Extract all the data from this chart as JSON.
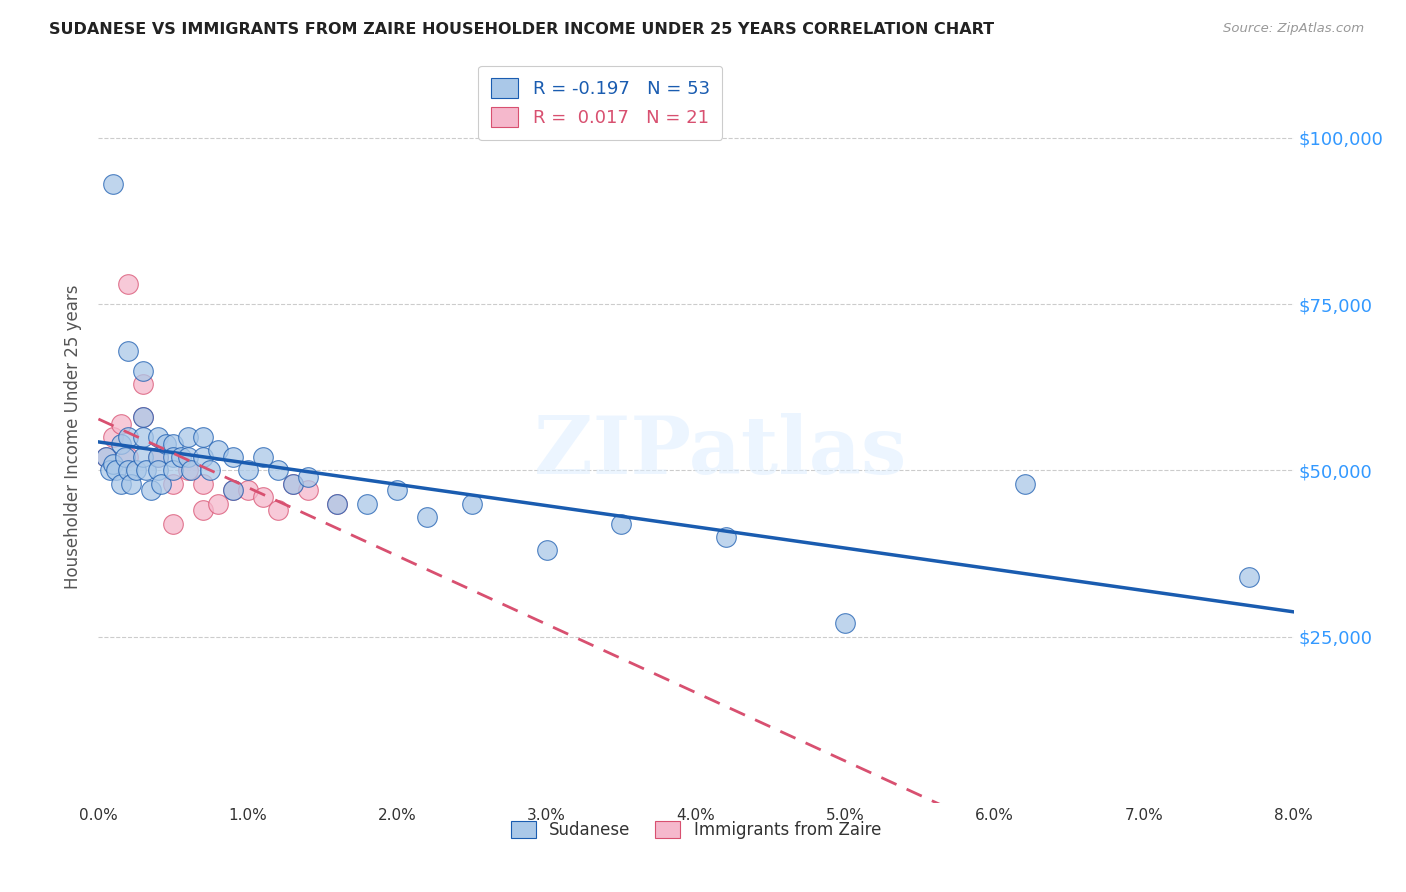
{
  "title": "SUDANESE VS IMMIGRANTS FROM ZAIRE HOUSEHOLDER INCOME UNDER 25 YEARS CORRELATION CHART",
  "source": "Source: ZipAtlas.com",
  "ylabel": "Householder Income Under 25 years",
  "watermark": "ZIPatlas",
  "xlim": [
    0.0,
    0.08
  ],
  "ylim": [
    0,
    110000
  ],
  "yticks": [
    0,
    25000,
    50000,
    75000,
    100000
  ],
  "ytick_labels": [
    "",
    "$25,000",
    "$50,000",
    "$75,000",
    "$100,000"
  ],
  "xticks": [
    0.0,
    0.01,
    0.02,
    0.03,
    0.04,
    0.05,
    0.06,
    0.07,
    0.08
  ],
  "xtick_labels": [
    "0.0%",
    "1.0%",
    "2.0%",
    "3.0%",
    "4.0%",
    "5.0%",
    "6.0%",
    "7.0%",
    "8.0%"
  ],
  "legend1_r": "-0.197",
  "legend1_n": "53",
  "legend2_r": "0.017",
  "legend2_n": "21",
  "blue_color": "#aac8e8",
  "pink_color": "#f5b8cc",
  "line_blue": "#1a5cb0",
  "line_pink": "#d85070",
  "sudanese_x": [
    0.0005,
    0.0008,
    0.001,
    0.001,
    0.0012,
    0.0015,
    0.0015,
    0.0018,
    0.002,
    0.002,
    0.002,
    0.0022,
    0.0025,
    0.003,
    0.003,
    0.003,
    0.003,
    0.0032,
    0.0035,
    0.004,
    0.004,
    0.004,
    0.0042,
    0.0045,
    0.005,
    0.005,
    0.005,
    0.0055,
    0.006,
    0.006,
    0.0062,
    0.007,
    0.007,
    0.0075,
    0.008,
    0.009,
    0.009,
    0.01,
    0.011,
    0.012,
    0.013,
    0.014,
    0.016,
    0.018,
    0.02,
    0.022,
    0.025,
    0.03,
    0.035,
    0.042,
    0.05,
    0.062,
    0.077
  ],
  "sudanese_y": [
    52000,
    50000,
    93000,
    51000,
    50000,
    54000,
    48000,
    52000,
    68000,
    55000,
    50000,
    48000,
    50000,
    65000,
    58000,
    55000,
    52000,
    50000,
    47000,
    55000,
    52000,
    50000,
    48000,
    54000,
    54000,
    52000,
    50000,
    52000,
    55000,
    52000,
    50000,
    55000,
    52000,
    50000,
    53000,
    52000,
    47000,
    50000,
    52000,
    50000,
    48000,
    49000,
    45000,
    45000,
    47000,
    43000,
    45000,
    38000,
    42000,
    40000,
    27000,
    48000,
    34000
  ],
  "zaire_x": [
    0.0005,
    0.001,
    0.0015,
    0.002,
    0.002,
    0.003,
    0.003,
    0.004,
    0.005,
    0.005,
    0.006,
    0.007,
    0.007,
    0.008,
    0.009,
    0.01,
    0.011,
    0.012,
    0.013,
    0.014,
    0.016
  ],
  "zaire_y": [
    52000,
    55000,
    57000,
    78000,
    52000,
    63000,
    58000,
    52000,
    48000,
    42000,
    50000,
    48000,
    44000,
    45000,
    47000,
    47000,
    46000,
    44000,
    48000,
    47000,
    45000
  ],
  "legend_items": [
    "Sudanese",
    "Immigrants from Zaire"
  ],
  "bg_color": "#ffffff",
  "grid_color": "#cccccc"
}
